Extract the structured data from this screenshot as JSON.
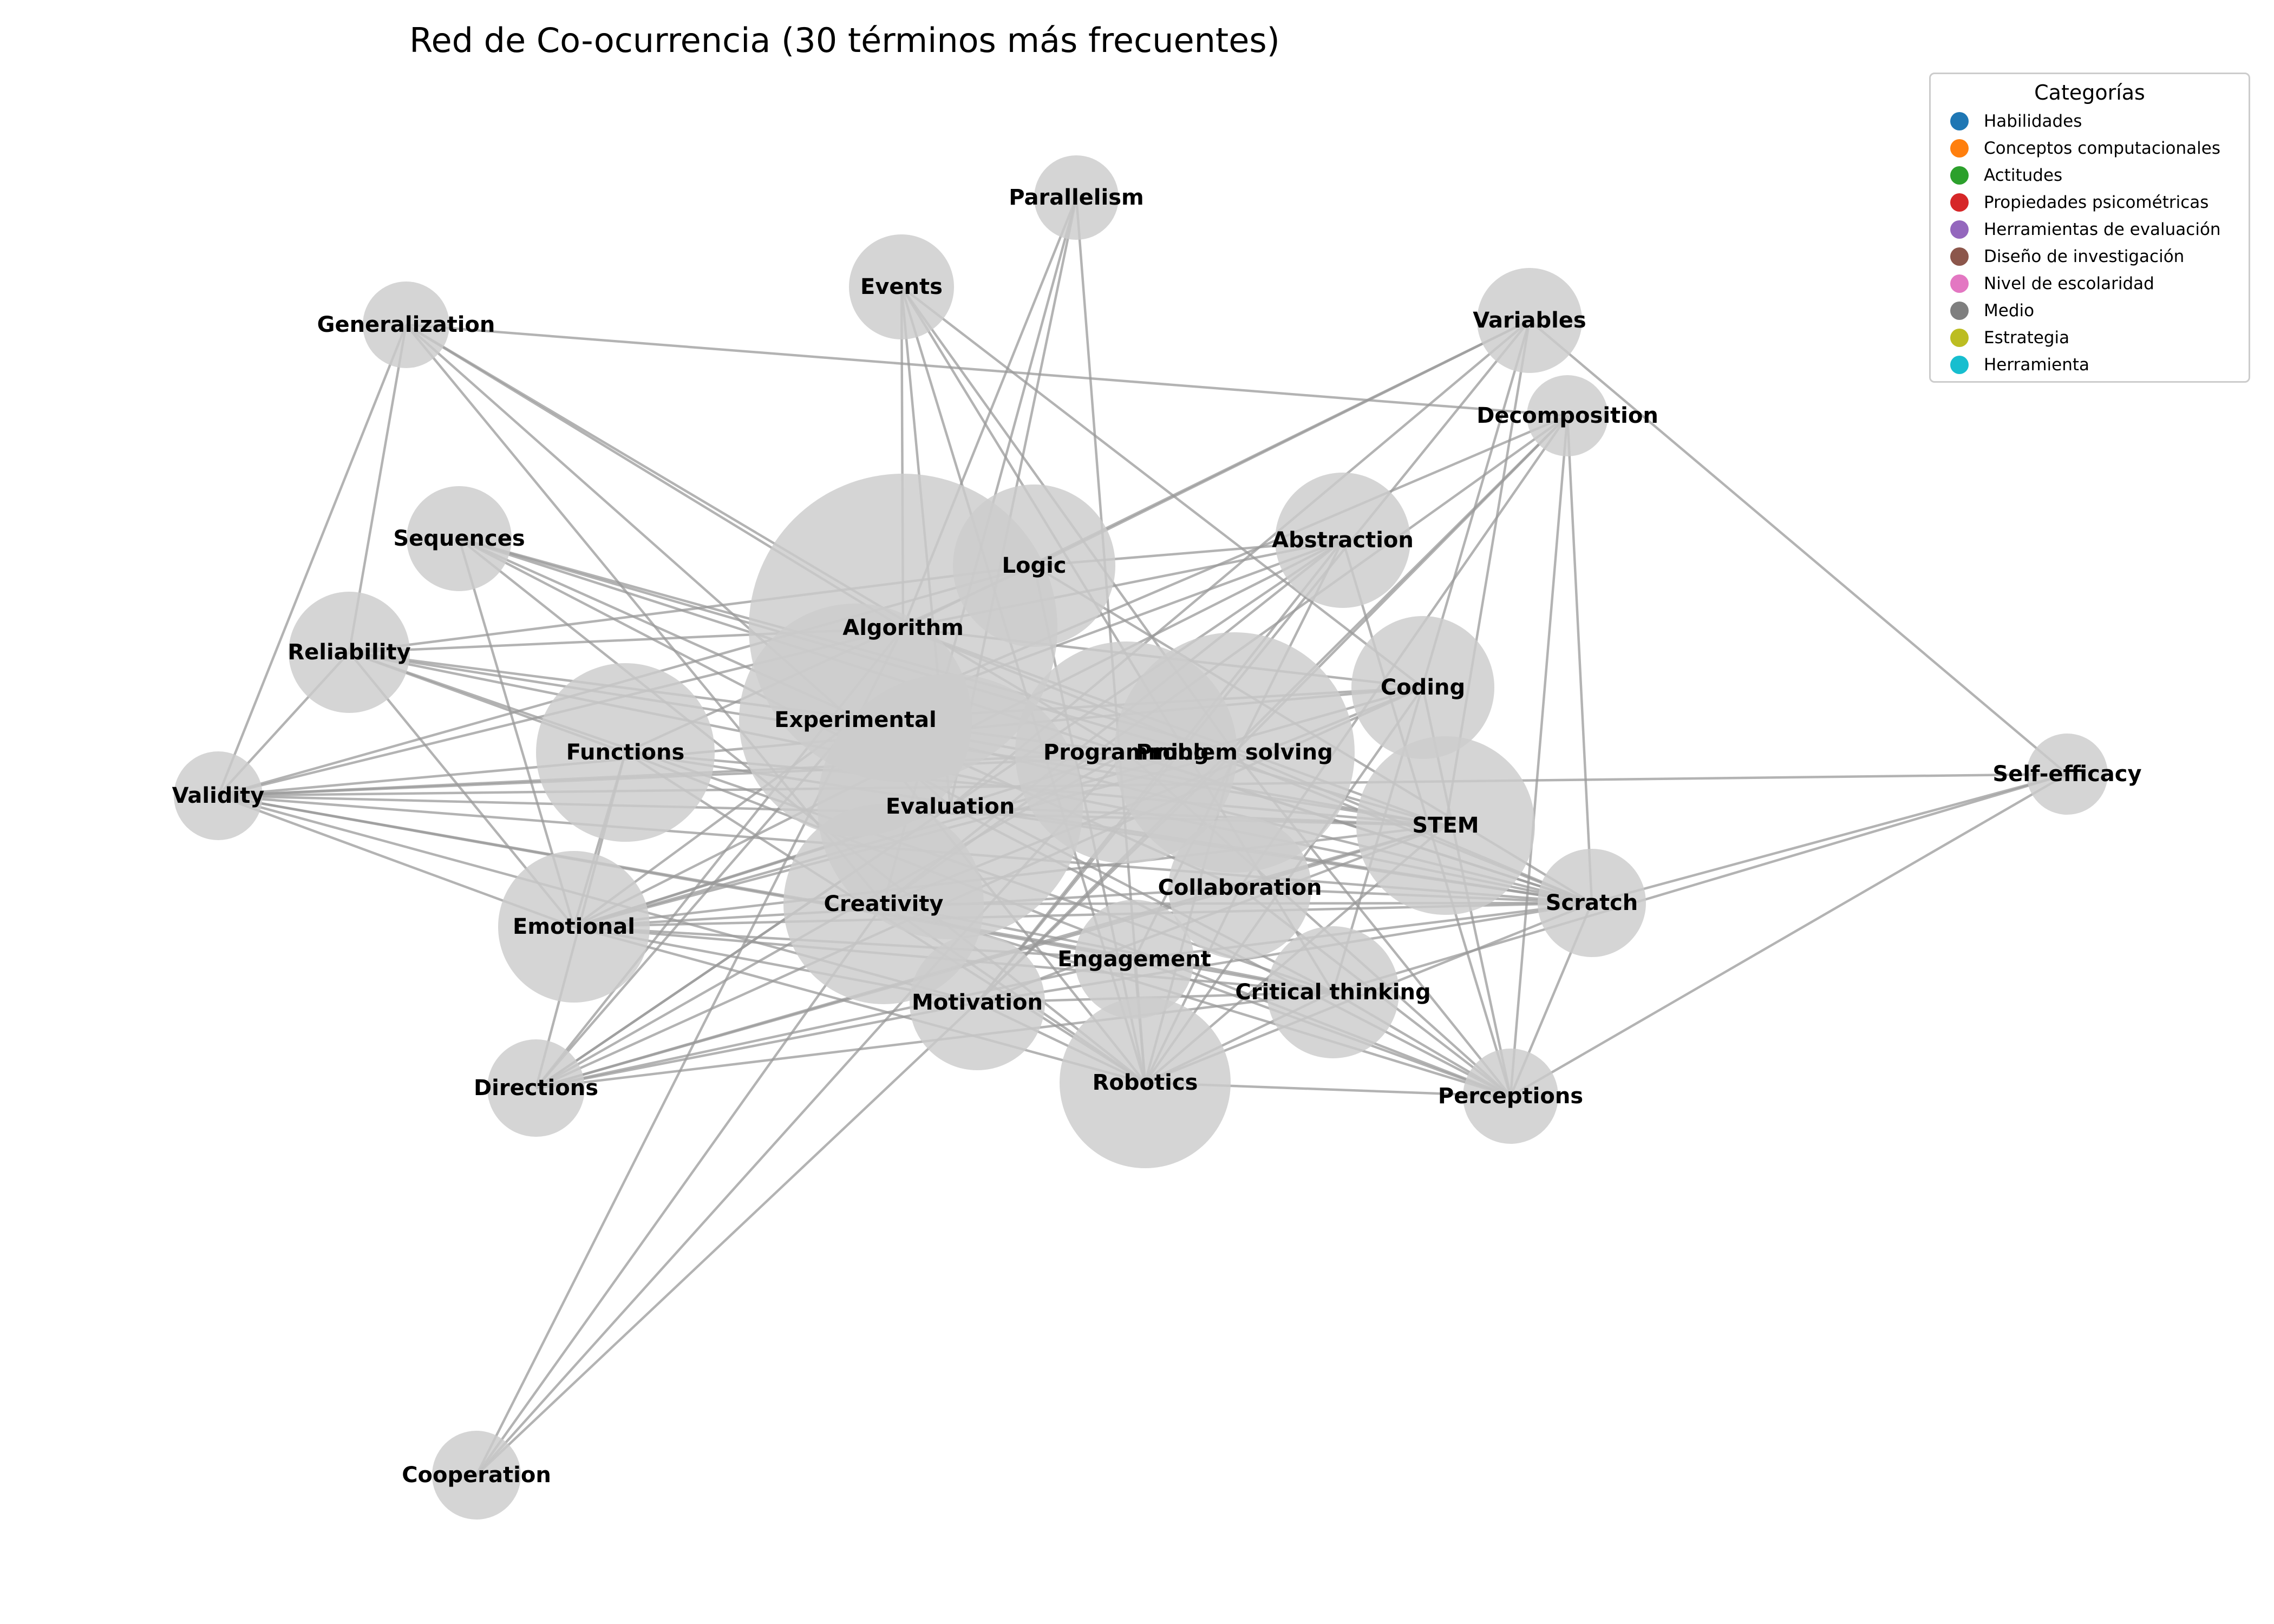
{
  "title": "Red de Co-ocurrencia (30 términos más frecuentes)",
  "colors": {
    "node": "#cccccc",
    "edge": "#9a9a9a"
  },
  "legend": {
    "title": "Categorías",
    "items": [
      {
        "label": "Habilidades",
        "color": "#1f77b4"
      },
      {
        "label": "Conceptos computacionales",
        "color": "#ff7f0e"
      },
      {
        "label": "Actitudes",
        "color": "#2ca02c"
      },
      {
        "label": "Propiedades psicométricas",
        "color": "#d62728"
      },
      {
        "label": "Herramientas de evaluación",
        "color": "#9467bd"
      },
      {
        "label": "Diseño de investigación",
        "color": "#8c564b"
      },
      {
        "label": "Nivel de escolaridad",
        "color": "#e377c2"
      },
      {
        "label": "Medio",
        "color": "#7f7f7f"
      },
      {
        "label": "Estrategia",
        "color": "#bcbd22"
      },
      {
        "label": "Herramienta",
        "color": "#17becf"
      }
    ]
  },
  "nodes": [
    {
      "id": "parallelism",
      "label": "Parallelism"
    },
    {
      "id": "events",
      "label": "Events"
    },
    {
      "id": "generalization",
      "label": "Generalization"
    },
    {
      "id": "variables",
      "label": "Variables"
    },
    {
      "id": "decomposition",
      "label": "Decomposition"
    },
    {
      "id": "sequences",
      "label": "Sequences"
    },
    {
      "id": "logic",
      "label": "Logic"
    },
    {
      "id": "abstraction",
      "label": "Abstraction"
    },
    {
      "id": "algorithm",
      "label": "Algorithm"
    },
    {
      "id": "reliability",
      "label": "Reliability"
    },
    {
      "id": "coding",
      "label": "Coding"
    },
    {
      "id": "experimental",
      "label": "Experimental"
    },
    {
      "id": "functions",
      "label": "Functions"
    },
    {
      "id": "programming",
      "label": "Programming"
    },
    {
      "id": "problem_solving",
      "label": "Problem solving"
    },
    {
      "id": "self_efficacy",
      "label": "Self-efficacy"
    },
    {
      "id": "validity",
      "label": "Validity"
    },
    {
      "id": "evaluation",
      "label": "Evaluation"
    },
    {
      "id": "stem",
      "label": "STEM"
    },
    {
      "id": "collaboration",
      "label": "Collaboration"
    },
    {
      "id": "creativity",
      "label": "Creativity"
    },
    {
      "id": "scratch",
      "label": "Scratch"
    },
    {
      "id": "emotional",
      "label": "Emotional"
    },
    {
      "id": "engagement",
      "label": "Engagement"
    },
    {
      "id": "critical_thinking",
      "label": "Critical thinking"
    },
    {
      "id": "motivation",
      "label": "Motivation"
    },
    {
      "id": "robotics",
      "label": "Robotics"
    },
    {
      "id": "directions",
      "label": "Directions"
    },
    {
      "id": "perceptions",
      "label": "Perceptions"
    },
    {
      "id": "cooperation",
      "label": "Cooperation"
    }
  ],
  "edges": [
    [
      "parallelism",
      "algorithm"
    ],
    [
      "parallelism",
      "evaluation"
    ],
    [
      "parallelism",
      "robotics"
    ],
    [
      "parallelism",
      "creativity"
    ],
    [
      "events",
      "algorithm"
    ],
    [
      "events",
      "evaluation"
    ],
    [
      "events",
      "robotics"
    ],
    [
      "events",
      "coding"
    ],
    [
      "events",
      "critical_thinking"
    ],
    [
      "events",
      "problem_solving"
    ],
    [
      "generalization",
      "decomposition"
    ],
    [
      "generalization",
      "reliability"
    ],
    [
      "generalization",
      "validity"
    ],
    [
      "generalization",
      "algorithm"
    ],
    [
      "generalization",
      "evaluation"
    ],
    [
      "generalization",
      "programming"
    ],
    [
      "generalization",
      "creativity"
    ],
    [
      "variables",
      "self_efficacy"
    ],
    [
      "variables",
      "algorithm"
    ],
    [
      "variables",
      "motivation"
    ],
    [
      "variables",
      "evaluation"
    ],
    [
      "variables",
      "stem"
    ],
    [
      "variables",
      "critical_thinking"
    ],
    [
      "variables",
      "logic"
    ],
    [
      "decomposition",
      "experimental"
    ],
    [
      "decomposition",
      "problem_solving"
    ],
    [
      "decomposition",
      "collaboration"
    ],
    [
      "decomposition",
      "creativity"
    ],
    [
      "decomposition",
      "scratch"
    ],
    [
      "decomposition",
      "perceptions"
    ],
    [
      "decomposition",
      "motivation"
    ],
    [
      "sequences",
      "problem_solving"
    ],
    [
      "sequences",
      "emotional"
    ],
    [
      "sequences",
      "robotics"
    ],
    [
      "sequences",
      "stem"
    ],
    [
      "sequences",
      "collaboration"
    ],
    [
      "sequences",
      "scratch"
    ],
    [
      "sequences",
      "critical_thinking"
    ],
    [
      "logic",
      "reliability"
    ],
    [
      "logic",
      "validity"
    ],
    [
      "logic",
      "robotics"
    ],
    [
      "logic",
      "scratch"
    ],
    [
      "logic",
      "functions"
    ],
    [
      "logic",
      "abstraction"
    ],
    [
      "abstraction",
      "emotional"
    ],
    [
      "abstraction",
      "directions"
    ],
    [
      "abstraction",
      "engagement"
    ],
    [
      "abstraction",
      "motivation"
    ],
    [
      "abstraction",
      "perceptions"
    ],
    [
      "abstraction",
      "creativity"
    ],
    [
      "abstraction",
      "experimental"
    ],
    [
      "algorithm",
      "reliability"
    ],
    [
      "algorithm",
      "validity"
    ],
    [
      "algorithm",
      "directions"
    ],
    [
      "algorithm",
      "cooperation"
    ],
    [
      "algorithm",
      "stem"
    ],
    [
      "algorithm",
      "scratch"
    ],
    [
      "algorithm",
      "coding"
    ],
    [
      "algorithm",
      "abstraction"
    ],
    [
      "reliability",
      "validity"
    ],
    [
      "reliability",
      "stem"
    ],
    [
      "reliability",
      "emotional"
    ],
    [
      "reliability",
      "critical_thinking"
    ],
    [
      "reliability",
      "scratch"
    ],
    [
      "reliability",
      "functions"
    ],
    [
      "reliability",
      "programming"
    ],
    [
      "coding",
      "emotional"
    ],
    [
      "coding",
      "directions"
    ],
    [
      "coding",
      "perceptions"
    ],
    [
      "coding",
      "creativity"
    ],
    [
      "coding",
      "robotics"
    ],
    [
      "coding",
      "validity"
    ],
    [
      "coding",
      "experimental"
    ],
    [
      "experimental",
      "scratch"
    ],
    [
      "experimental",
      "robotics"
    ],
    [
      "experimental",
      "emotional"
    ],
    [
      "experimental",
      "directions"
    ],
    [
      "experimental",
      "stem"
    ],
    [
      "functions",
      "directions"
    ],
    [
      "functions",
      "stem"
    ],
    [
      "functions",
      "scratch"
    ],
    [
      "functions",
      "robotics"
    ],
    [
      "functions",
      "perceptions"
    ],
    [
      "functions",
      "emotional"
    ],
    [
      "programming",
      "validity"
    ],
    [
      "programming",
      "emotional"
    ],
    [
      "programming",
      "cooperation"
    ],
    [
      "programming",
      "scratch"
    ],
    [
      "programming",
      "perceptions"
    ],
    [
      "programming",
      "directions"
    ],
    [
      "problem_solving",
      "validity"
    ],
    [
      "problem_solving",
      "emotional"
    ],
    [
      "problem_solving",
      "scratch"
    ],
    [
      "problem_solving",
      "robotics"
    ],
    [
      "problem_solving",
      "motivation"
    ],
    [
      "problem_solving",
      "perceptions"
    ],
    [
      "self_efficacy",
      "validity"
    ],
    [
      "self_efficacy",
      "perceptions"
    ],
    [
      "self_efficacy",
      "critical_thinking"
    ],
    [
      "self_efficacy",
      "scratch"
    ],
    [
      "validity",
      "emotional"
    ],
    [
      "validity",
      "critical_thinking"
    ],
    [
      "validity",
      "scratch"
    ],
    [
      "validity",
      "engagement"
    ],
    [
      "validity",
      "stem"
    ],
    [
      "validity",
      "motivation"
    ],
    [
      "evaluation",
      "scratch"
    ],
    [
      "evaluation",
      "directions"
    ],
    [
      "evaluation",
      "perceptions"
    ],
    [
      "evaluation",
      "emotional"
    ],
    [
      "evaluation",
      "stem"
    ],
    [
      "stem",
      "emotional"
    ],
    [
      "stem",
      "directions"
    ],
    [
      "stem",
      "collaboration"
    ],
    [
      "stem",
      "robotics"
    ],
    [
      "stem",
      "motivation"
    ],
    [
      "collaboration",
      "emotional"
    ],
    [
      "collaboration",
      "directions"
    ],
    [
      "collaboration",
      "robotics"
    ],
    [
      "collaboration",
      "perceptions"
    ],
    [
      "collaboration",
      "scratch"
    ],
    [
      "creativity",
      "scratch"
    ],
    [
      "creativity",
      "robotics"
    ],
    [
      "creativity",
      "perceptions"
    ],
    [
      "creativity",
      "cooperation"
    ],
    [
      "creativity",
      "critical_thinking"
    ],
    [
      "scratch",
      "emotional"
    ],
    [
      "scratch",
      "motivation"
    ],
    [
      "scratch",
      "robotics"
    ],
    [
      "scratch",
      "perceptions"
    ],
    [
      "scratch",
      "engagement"
    ],
    [
      "emotional",
      "motivation"
    ],
    [
      "emotional",
      "engagement"
    ],
    [
      "emotional",
      "critical_thinking"
    ],
    [
      "emotional",
      "robotics"
    ],
    [
      "engagement",
      "directions"
    ],
    [
      "engagement",
      "perceptions"
    ],
    [
      "engagement",
      "robotics"
    ],
    [
      "critical_thinking",
      "perceptions"
    ],
    [
      "critical_thinking",
      "directions"
    ],
    [
      "critical_thinking",
      "robotics"
    ],
    [
      "critical_thinking",
      "motivation"
    ],
    [
      "motivation",
      "directions"
    ],
    [
      "motivation",
      "cooperation"
    ],
    [
      "motivation",
      "robotics"
    ],
    [
      "robotics",
      "perceptions"
    ]
  ]
}
